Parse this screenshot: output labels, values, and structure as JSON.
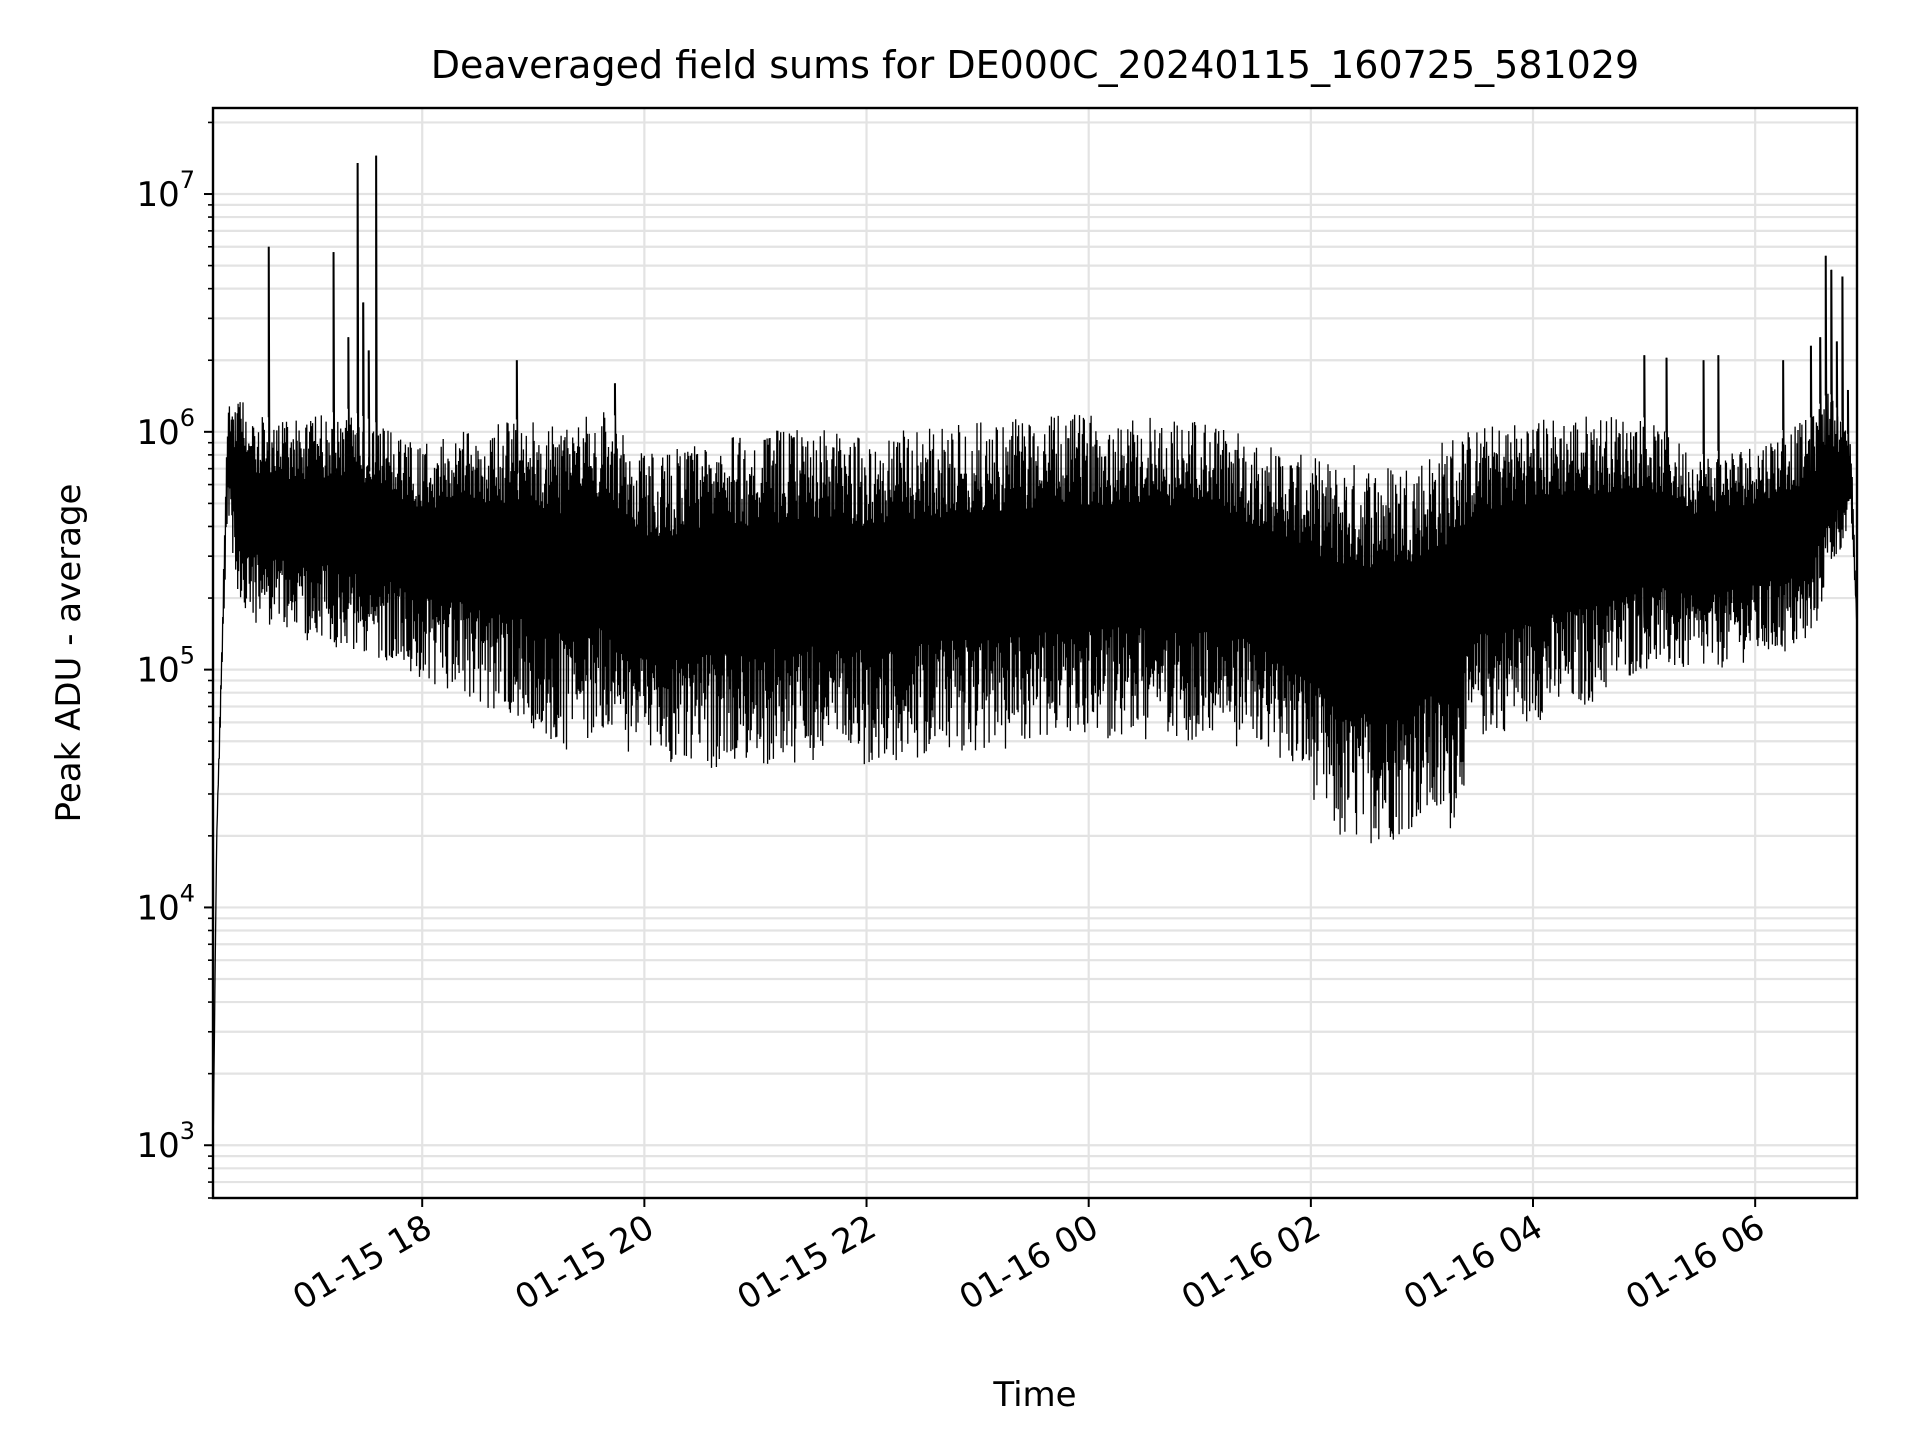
{
  "chart_data": {
    "type": "line",
    "title": "Deaveraged field sums for DE000C_20240115_160725_581029",
    "xlabel": "Time",
    "ylabel": "Peak ADU - average",
    "yscale": "log",
    "ylim": [
      600,
      23000000
    ],
    "xlim": [
      "2024-01-15 16:07",
      "2024-01-16 06:55"
    ],
    "grid": true,
    "legend": "none",
    "line_color": "#000000",
    "yticks": [
      {
        "value": 1000,
        "base": "10",
        "exp": "3"
      },
      {
        "value": 10000,
        "base": "10",
        "exp": "4"
      },
      {
        "value": 100000,
        "base": "10",
        "exp": "5"
      },
      {
        "value": 1000000,
        "base": "10",
        "exp": "6"
      },
      {
        "value": 10000000,
        "base": "10",
        "exp": "7"
      }
    ],
    "xticks": [
      {
        "value": "2024-01-15 18:00",
        "label": "01-15 18"
      },
      {
        "value": "2024-01-15 20:00",
        "label": "01-15 20"
      },
      {
        "value": "2024-01-15 22:00",
        "label": "01-15 22"
      },
      {
        "value": "2024-01-16 00:00",
        "label": "01-16 00"
      },
      {
        "value": "2024-01-16 02:00",
        "label": "01-16 02"
      },
      {
        "value": "2024-01-16 04:00",
        "label": "01-16 04"
      },
      {
        "value": "2024-01-16 06:00",
        "label": "01-16 06"
      }
    ],
    "series": [
      {
        "color": "#000000",
        "envelope": {
          "time": [
            "2024-01-15 16:07",
            "2024-01-15 16:09",
            "2024-01-15 16:15",
            "2024-01-15 16:20",
            "2024-01-15 16:30",
            "2024-01-15 16:45",
            "2024-01-15 17:00",
            "2024-01-15 17:20",
            "2024-01-15 17:40",
            "2024-01-15 18:00",
            "2024-01-15 18:20",
            "2024-01-15 18:40",
            "2024-01-15 19:00",
            "2024-01-15 19:20",
            "2024-01-15 19:40",
            "2024-01-15 19:50",
            "2024-01-15 20:00",
            "2024-01-15 20:30",
            "2024-01-15 21:00",
            "2024-01-15 21:30",
            "2024-01-15 22:00",
            "2024-01-15 22:30",
            "2024-01-15 23:00",
            "2024-01-15 23:30",
            "2024-01-16 00:00",
            "2024-01-16 00:30",
            "2024-01-16 01:00",
            "2024-01-16 01:30",
            "2024-01-16 01:55",
            "2024-01-16 02:15",
            "2024-01-16 02:45",
            "2024-01-16 03:00",
            "2024-01-16 03:15",
            "2024-01-16 03:30",
            "2024-01-16 04:00",
            "2024-01-16 04:30",
            "2024-01-16 05:00",
            "2024-01-16 05:30",
            "2024-01-16 06:00",
            "2024-01-16 06:30",
            "2024-01-16 06:40",
            "2024-01-16 06:52",
            "2024-01-16 06:55"
          ],
          "upper": [
            900,
            20000,
            1300000,
            1450000,
            1200000,
            1100000,
            1150000,
            1250000,
            1050000,
            900000,
            1000000,
            1100000,
            1150000,
            1050000,
            1350000,
            950000,
            850000,
            900000,
            1000000,
            1050000,
            950000,
            1050000,
            1100000,
            1150000,
            1200000,
            1200000,
            1150000,
            950000,
            800000,
            750000,
            750000,
            800000,
            1000000,
            1050000,
            1150000,
            1200000,
            1150000,
            800000,
            900000,
            1150000,
            1500000,
            900000,
            150000
          ],
          "lower": [
            900,
            20000,
            500000,
            180000,
            150000,
            150000,
            130000,
            120000,
            110000,
            90000,
            80000,
            65000,
            55000,
            45000,
            55000,
            45000,
            38000,
            38000,
            40000,
            40000,
            40000,
            42000,
            45000,
            48000,
            50000,
            50000,
            50000,
            45000,
            35000,
            18000,
            19000,
            23000,
            20000,
            50000,
            60000,
            70000,
            100000,
            95000,
            110000,
            120000,
            250000,
            400000,
            150000
          ]
        },
        "spikes": [
          {
            "time": "2024-01-15 16:37",
            "value": 6000000
          },
          {
            "time": "2024-01-15 17:12",
            "value": 5700000
          },
          {
            "time": "2024-01-15 17:20",
            "value": 2500000
          },
          {
            "time": "2024-01-15 17:25",
            "value": 13500000
          },
          {
            "time": "2024-01-15 17:28",
            "value": 3500000
          },
          {
            "time": "2024-01-15 17:31",
            "value": 2200000
          },
          {
            "time": "2024-01-15 17:35",
            "value": 14500000
          },
          {
            "time": "2024-01-15 18:51",
            "value": 2000000
          },
          {
            "time": "2024-01-15 19:44",
            "value": 1600000
          },
          {
            "time": "2024-01-16 05:00",
            "value": 2100000
          },
          {
            "time": "2024-01-16 05:12",
            "value": 2050000
          },
          {
            "time": "2024-01-16 05:32",
            "value": 2000000
          },
          {
            "time": "2024-01-16 05:40",
            "value": 2100000
          },
          {
            "time": "2024-01-16 06:15",
            "value": 2000000
          },
          {
            "time": "2024-01-16 06:30",
            "value": 2300000
          },
          {
            "time": "2024-01-16 06:35",
            "value": 2500000
          },
          {
            "time": "2024-01-16 06:38",
            "value": 5500000
          },
          {
            "time": "2024-01-16 06:41",
            "value": 4800000
          },
          {
            "time": "2024-01-16 06:44",
            "value": 2400000
          },
          {
            "time": "2024-01-16 06:47",
            "value": 4500000
          },
          {
            "time": "2024-01-16 06:50",
            "value": 1500000
          }
        ]
      }
    ]
  }
}
